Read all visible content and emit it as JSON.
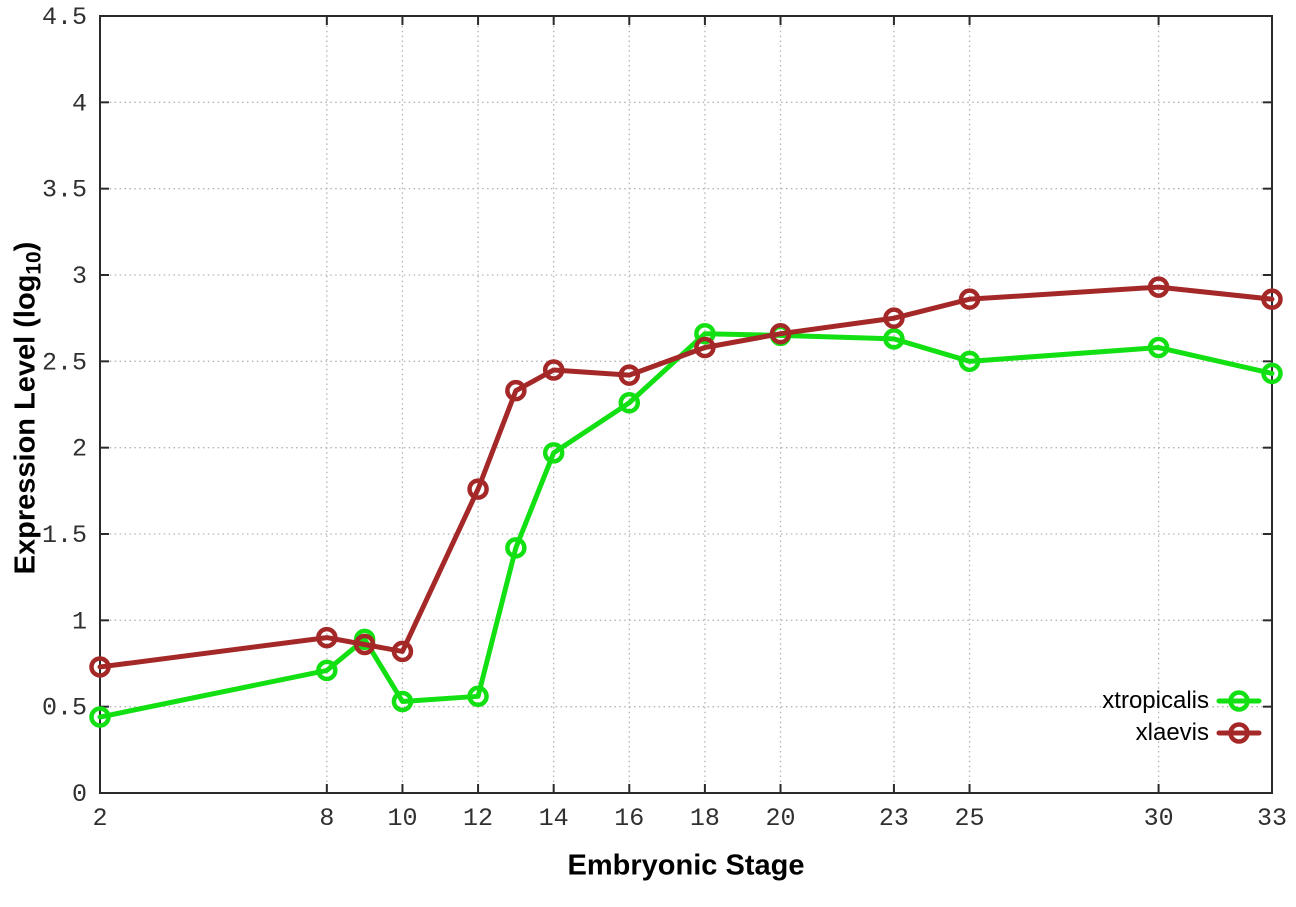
{
  "figure": {
    "background_color": "#ffffff",
    "border_color": "#2a2a2a",
    "grid_color": "#b3b3b3",
    "tick_label_color": "#303030",
    "x_axis_title": "Embryonic Stage",
    "y_axis_title_prefix": "Expression Level (log",
    "y_axis_title_sub": "10",
    "y_axis_title_suffix": ")"
  },
  "chart_data": {
    "type": "line",
    "title": "",
    "xlabel": "Embryonic Stage",
    "ylabel": "Expression Level (log10)",
    "xlim": [
      2,
      33
    ],
    "ylim": [
      0,
      4.5
    ],
    "grid": true,
    "legend_position": "bottom-right",
    "marker": "open-circle",
    "x": [
      2,
      8,
      9,
      10,
      12,
      13,
      14,
      16,
      18,
      20,
      23,
      25,
      30,
      33
    ],
    "series": [
      {
        "name": "xtropicalis",
        "color": "#12e012",
        "values": [
          0.44,
          0.71,
          0.89,
          0.53,
          0.56,
          1.42,
          1.97,
          2.26,
          2.66,
          2.65,
          2.63,
          2.5,
          2.58,
          2.43
        ]
      },
      {
        "name": "xlaevis",
        "color": "#a52828",
        "values": [
          0.73,
          0.9,
          0.86,
          0.82,
          1.76,
          2.33,
          2.45,
          2.42,
          2.58,
          2.66,
          2.75,
          2.86,
          2.93,
          2.86
        ]
      }
    ],
    "x_ticks": {
      "values": [
        2,
        8,
        10,
        12,
        14,
        16,
        18,
        20,
        23,
        25,
        30,
        33
      ],
      "labels": [
        "2",
        "8",
        "10",
        "12",
        "14",
        "16",
        "18",
        "20",
        "23",
        "25",
        "30",
        "33"
      ]
    },
    "y_ticks": {
      "values": [
        0,
        0.5,
        1,
        1.5,
        2,
        2.5,
        3,
        3.5,
        4,
        4.5
      ],
      "labels": [
        "0",
        "0.5",
        "1",
        "1.5",
        "2",
        "2.5",
        "3",
        "3.5",
        "4",
        "4.5"
      ]
    }
  }
}
